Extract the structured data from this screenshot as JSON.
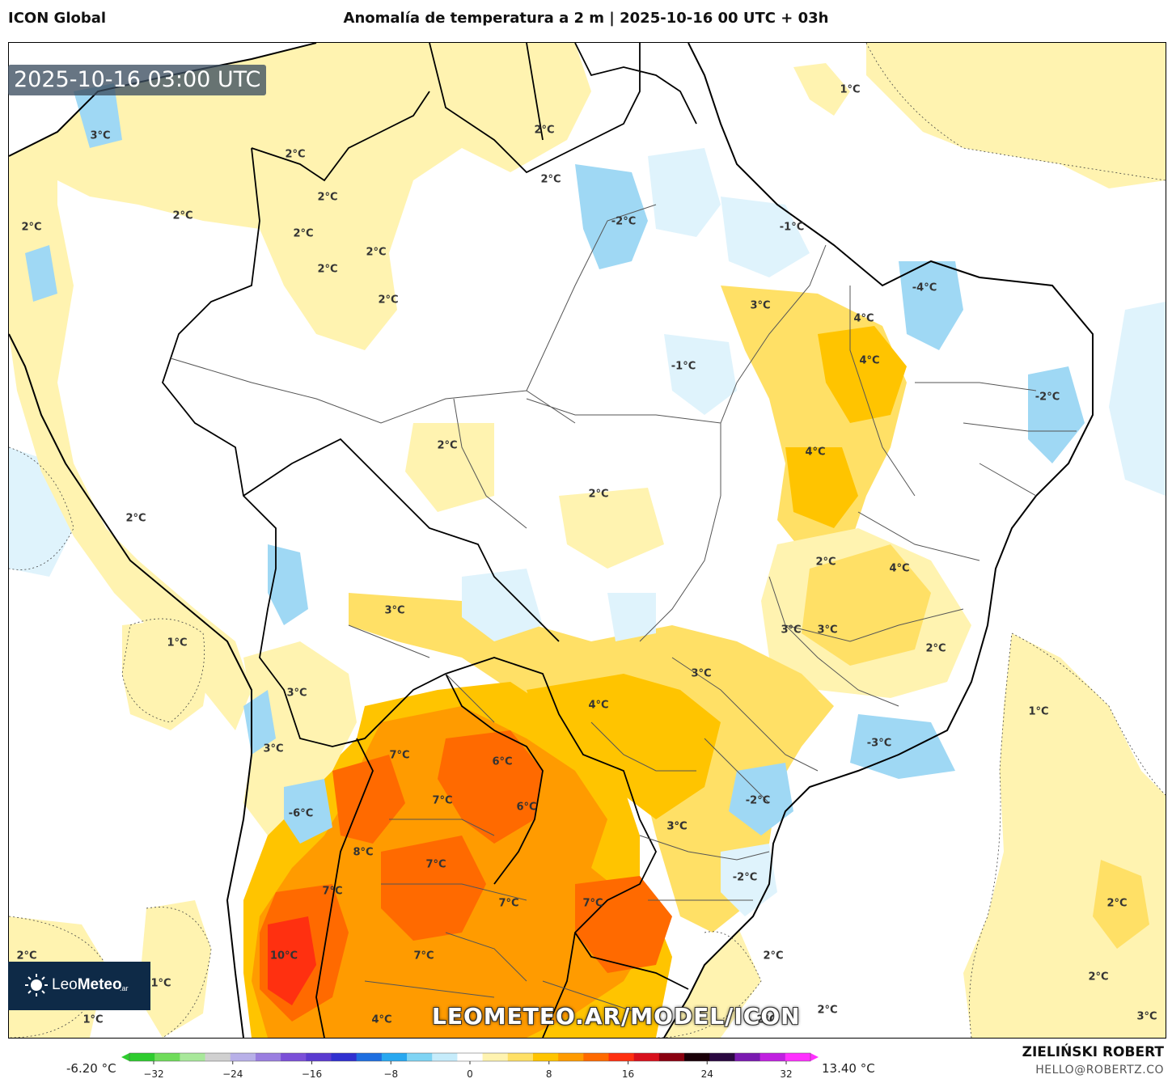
{
  "header": {
    "model": "ICON Global",
    "title": "Anomalía de temperatura a 2 m | 2025-10-16 00 UTC + 03h"
  },
  "map": {
    "timestamp": "2025-10-16 03:00 UTC",
    "watermark": "LEOMETEO.AR/MODEL/ICON",
    "contour_labels": [
      "1°C",
      "2°C",
      "2°C",
      "2°C",
      "2°C",
      "2°C",
      "2°C",
      "2°C",
      "2°C",
      "2°C",
      "2°C",
      "-2°C",
      "-1°C",
      "-4°C",
      "3°C",
      "4°C",
      "4°C",
      "-1°C",
      "-2°C",
      "2°C",
      "2°C",
      "4°C",
      "2°C",
      "4°C",
      "3°C",
      "3°C",
      "3°C",
      "3°C",
      "2°C",
      "1°C",
      "1°C",
      "3°C",
      "3°C",
      "4°C",
      "3°C",
      "7°C",
      "6°C",
      "7°C",
      "6°C",
      "-6°C",
      "8°C",
      "7°C",
      "7°C",
      "7°C",
      "7°C",
      "-3°C",
      "-2°C",
      "3°C",
      "-2°C",
      "10°C",
      "7°C",
      "4°C",
      "2°C",
      "2°C",
      "2°C",
      "2°C",
      "2°C",
      "3°C",
      "2°C",
      "1°C",
      "1°C",
      "2°C",
      "3°C"
    ]
  },
  "logo": {
    "brand_light": "Leo",
    "brand_bold": "Meteo",
    "tld": ".ar"
  },
  "colorbar": {
    "min_label": "-6.20 °C",
    "max_label": "13.40 °C",
    "ticks": [
      "−32",
      "−24",
      "−16",
      "−8",
      "0",
      "8",
      "16",
      "24",
      "32"
    ],
    "colors": [
      "#2ecc2e",
      "#6fdc5a",
      "#a8e89a",
      "#d0d0d0",
      "#b8b0e8",
      "#9a7ee0",
      "#7b4fd8",
      "#5a3ad0",
      "#3030d0",
      "#1e6ee0",
      "#28a8f0",
      "#7fd4f4",
      "#c6ecfb",
      "#ffffff",
      "#fff3b0",
      "#ffe066",
      "#ffc400",
      "#ff9b00",
      "#ff6a00",
      "#ff3010",
      "#d8101c",
      "#8a0010",
      "#1a0008",
      "#2a0840",
      "#7a1ab0",
      "#c020e0",
      "#ff30ff"
    ]
  },
  "credits": {
    "author": "ZIELIŃSKI ROBERT",
    "email": "HELLO@ROBERTZ.CO"
  },
  "colors": {
    "ocean": "#ffffff",
    "anomaly_light_yellow": "#fff3b0",
    "anomaly_yellow": "#ffe066",
    "anomaly_gold": "#ffc400",
    "anomaly_orange": "#ff9b00",
    "anomaly_dark_orange": "#ff6a00",
    "anomaly_red": "#ff3010",
    "anomaly_light_blue": "#dff3fc",
    "anomaly_blue": "#9fd8f4"
  }
}
